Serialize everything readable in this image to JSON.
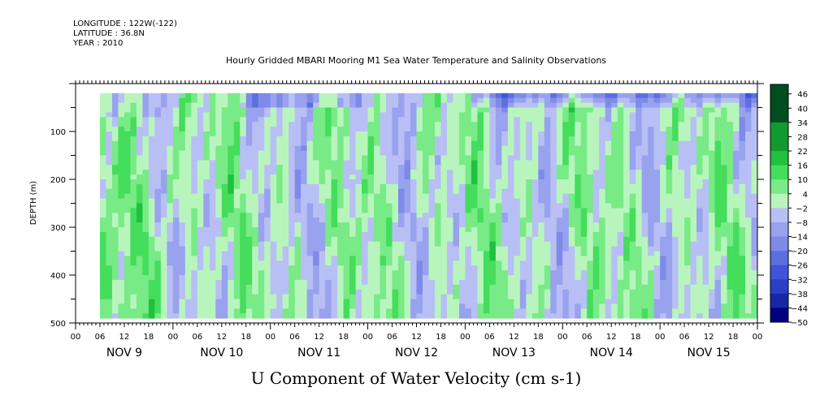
{
  "header": {
    "longitude": "LONGITUDE : 122W(-122)",
    "latitude": "LATITUDE : 36.8N",
    "year": "YEAR : 2010"
  },
  "chart_data": {
    "type": "heatmap",
    "title": "Hourly Gridded MBARI Mooring M1 Sea Water Temperature and Salinity Observations",
    "xlabel": "U Component of Water Velocity (cm s-1)",
    "ylabel": "DEPTH (m)",
    "ylim": [
      500,
      0
    ],
    "y_ticks": [
      100,
      200,
      300,
      400,
      500
    ],
    "y_data_range": [
      20,
      490
    ],
    "x_range_hours": [
      0,
      168
    ],
    "x_data_start_hour": 6,
    "x_data_end_hour": 168,
    "x_hour_ticks": [
      "00",
      "06",
      "12",
      "18",
      "00",
      "06",
      "12",
      "18",
      "00",
      "06",
      "12",
      "18",
      "00",
      "06",
      "12",
      "18",
      "00",
      "06",
      "12",
      "18",
      "00",
      "06",
      "12",
      "18",
      "00",
      "06",
      "12",
      "18",
      "00"
    ],
    "x_day_labels": [
      "NOV  9",
      "NOV 10",
      "NOV 11",
      "NOV 12",
      "NOV 13",
      "NOV 14",
      "NOV 15"
    ],
    "colorbar_levels": [
      46,
      40,
      34,
      28,
      22,
      16,
      10,
      4,
      -2,
      -8,
      -14,
      -20,
      -26,
      -32,
      -38,
      -44,
      -50
    ],
    "colorbar_range": [
      -50,
      50
    ],
    "colors": {
      "strong_positive": "#003f1a",
      "positive": "#2fd24b",
      "weak_positive": "#9ef0a8",
      "weak_negative": "#a8b0f0",
      "negative": "#5a6ee0",
      "strong_negative": "#000080"
    }
  }
}
